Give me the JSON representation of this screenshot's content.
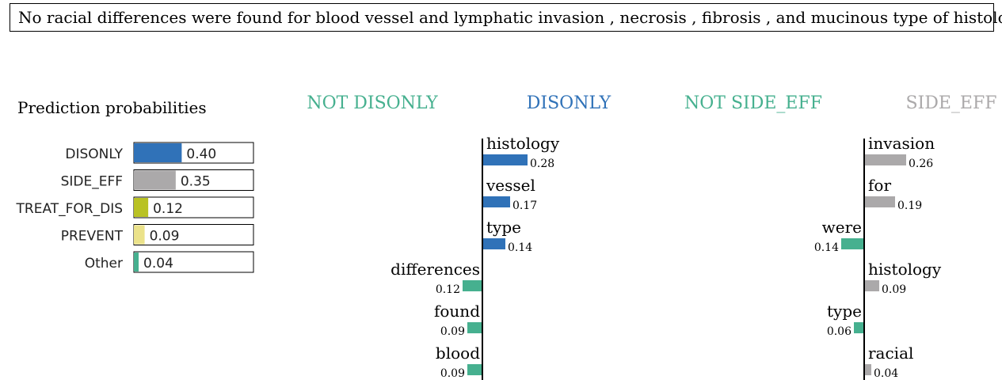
{
  "sentence": "No racial differences were found for blood vessel and lymphatic invasion , necrosis , fibrosis , and mucinous type of histology.",
  "prediction_title": "Prediction probabilities",
  "colors": {
    "DISONLY": "#3072b8",
    "SIDE_EFF": "#aba9aa",
    "TREAT_FOR_DIS": "#b9c224",
    "PREVENT": "#ebe28a",
    "Other": "#46b08f",
    "not_color": "#46b08f"
  },
  "chart_data": [
    {
      "type": "bar",
      "title": "Prediction probabilities",
      "categories": [
        "DISONLY",
        "SIDE_EFF",
        "TREAT_FOR_DIS",
        "PREVENT",
        "Other"
      ],
      "values": [
        0.4,
        0.35,
        0.12,
        0.09,
        0.04
      ],
      "labels": [
        "0.40",
        "0.35",
        "0.12",
        "0.09",
        "0.04"
      ],
      "xlim": [
        0,
        1
      ]
    },
    {
      "type": "bar",
      "orientation": "diverging",
      "negative_label": "NOT DISONLY",
      "positive_label": "DISONLY",
      "positive_color": "#3072b8",
      "negative_color": "#46b08f",
      "words": [
        "histology",
        "vessel",
        "type",
        "differences",
        "found",
        "blood"
      ],
      "values": [
        0.28,
        0.17,
        0.14,
        -0.12,
        -0.09,
        -0.09
      ],
      "labels": [
        "0.28",
        "0.17",
        "0.14",
        "0.12",
        "0.09",
        "0.09"
      ]
    },
    {
      "type": "bar",
      "orientation": "diverging",
      "negative_label": "NOT SIDE_EFF",
      "positive_label": "SIDE_EFF",
      "positive_color": "#aba9aa",
      "negative_color": "#46b08f",
      "words": [
        "invasion",
        "for",
        "were",
        "histology",
        "type",
        "racial"
      ],
      "values": [
        0.26,
        0.19,
        -0.14,
        0.09,
        -0.06,
        0.04
      ],
      "labels": [
        "0.26",
        "0.19",
        "0.14",
        "0.09",
        "0.06",
        "0.04"
      ]
    }
  ]
}
